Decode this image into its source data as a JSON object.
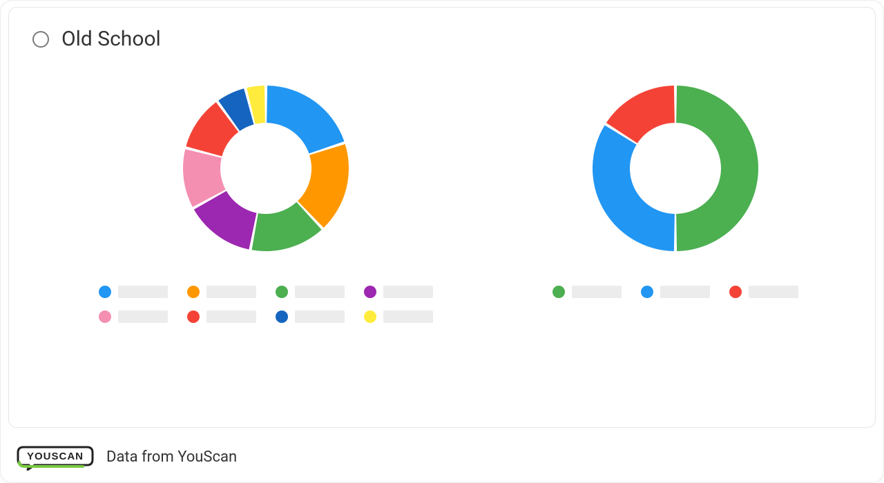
{
  "card": {
    "title": "Old School",
    "radio_selected": false,
    "background_color": "#ffffff",
    "border_color": "#e6e6e6",
    "border_radius": 12,
    "title_fontsize": 30,
    "title_color": "#333333"
  },
  "chart_left": {
    "type": "donut",
    "inner_radius_ratio": 0.55,
    "gap_deg": 2,
    "start_angle_deg": -90,
    "segments": [
      {
        "value": 20,
        "color": "#2196f3"
      },
      {
        "value": 18,
        "color": "#ff9800"
      },
      {
        "value": 15,
        "color": "#4caf50"
      },
      {
        "value": 14,
        "color": "#9c27b0"
      },
      {
        "value": 12,
        "color": "#f48fb1"
      },
      {
        "value": 11,
        "color": "#f44336"
      },
      {
        "value": 6,
        "color": "#1565c0"
      },
      {
        "value": 4,
        "color": "#ffeb3b"
      }
    ],
    "legend_colors": [
      "#2196f3",
      "#ff9800",
      "#4caf50",
      "#9c27b0",
      "#f48fb1",
      "#f44336",
      "#1565c0",
      "#ffeb3b"
    ],
    "legend_placeholder_color": "#ececec",
    "legend_dot_diameter": 18,
    "legend_bar_width": 72
  },
  "chart_right": {
    "type": "donut",
    "inner_radius_ratio": 0.55,
    "gap_deg": 2,
    "start_angle_deg": -90,
    "segments": [
      {
        "value": 50,
        "color": "#4caf50"
      },
      {
        "value": 34,
        "color": "#2196f3"
      },
      {
        "value": 16,
        "color": "#f44336"
      }
    ],
    "legend_colors": [
      "#4caf50",
      "#2196f3",
      "#f44336"
    ],
    "legend_placeholder_color": "#ececec",
    "legend_dot_diameter": 18,
    "legend_bar_width": 72
  },
  "footer": {
    "attribution": "Data from YouScan",
    "logo_text": "YOUSCAN",
    "logo_border_color": "#222222",
    "logo_accent_color": "#7ac943",
    "logo_text_color": "#222222",
    "text_color": "#333333",
    "text_fontsize": 22
  }
}
